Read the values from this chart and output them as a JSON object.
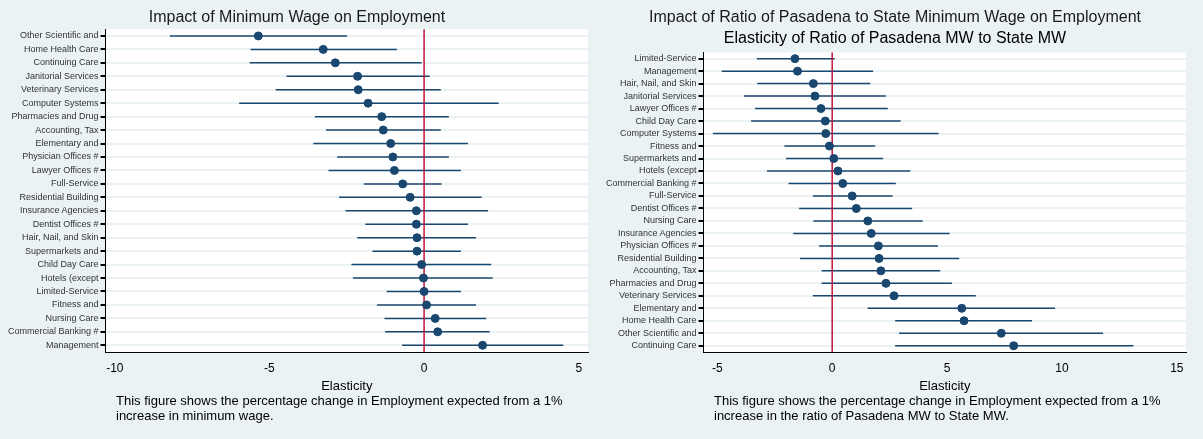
{
  "chart_data": [
    {
      "type": "scatter",
      "orientation": "horizontal",
      "title": "Impact of Minimum Wage on Employment",
      "xlabel": "Elasticity",
      "annotations": [
        "This figure shows the percentage change in Employment expected from a 1% increase in minimum wage."
      ],
      "marker": "circle",
      "grid": "y",
      "legend": false,
      "color": "#1a476f",
      "xlim": [
        -10.3,
        5.3
      ],
      "xticks": [
        -10,
        -5,
        0,
        5
      ],
      "ref_lines": [
        {
          "axis": "x",
          "value": 0,
          "color": "#c0143c"
        }
      ],
      "categories": [
        "Other Scientific and",
        "Home Health Care",
        "Continuing Care",
        "Janitorial Services",
        "Veterinary Services",
        "Computer Systems",
        "Pharmacies and Drug",
        "Accounting, Tax",
        "Elementary and",
        "Physician Offices #",
        "Lawyer Offices #",
        "Full-Service",
        "Residential Building",
        "Insurance Agencies",
        "Dentist Offices #",
        "Hair, Nail, and Skin",
        "Supermarkets and",
        "Child Day Care",
        "Hotels (except",
        "Limited-Service",
        "Fitness and",
        "Nursing Care",
        "Commercial Banking #",
        "Management"
      ],
      "values": [
        -5.36,
        -3.26,
        -2.87,
        -2.15,
        -2.13,
        -1.81,
        -1.37,
        -1.32,
        -1.08,
        -1.01,
        -0.96,
        -0.69,
        -0.45,
        -0.25,
        -0.25,
        -0.23,
        -0.23,
        -0.08,
        -0.02,
        0.0,
        0.08,
        0.36,
        0.44,
        1.89
      ],
      "errors": [
        [
          -8.22,
          -2.49
        ],
        [
          -5.61,
          -0.88
        ],
        [
          -5.64,
          -0.08
        ],
        [
          -4.45,
          0.18
        ],
        [
          -4.8,
          0.54
        ],
        [
          -5.98,
          2.41
        ],
        [
          -3.53,
          0.8
        ],
        [
          -3.17,
          0.54
        ],
        [
          -3.58,
          1.42
        ],
        [
          -2.81,
          0.8
        ],
        [
          -3.09,
          1.19
        ],
        [
          -1.95,
          0.57
        ],
        [
          -2.75,
          1.86
        ],
        [
          -2.54,
          2.07
        ],
        [
          -1.9,
          1.42
        ],
        [
          -2.16,
          1.68
        ],
        [
          -1.67,
          1.19
        ],
        [
          -2.35,
          2.17
        ],
        [
          -2.3,
          2.22
        ],
        [
          -1.21,
          1.19
        ],
        [
          -1.52,
          1.68
        ],
        [
          -1.28,
          2.01
        ],
        [
          -1.26,
          2.12
        ],
        [
          -0.71,
          4.5
        ]
      ]
    },
    {
      "type": "scatter",
      "orientation": "horizontal",
      "title": "Impact of Ratio of Pasadena to State Minimum Wage on Employment",
      "subtitle": "Elasticity of Ratio of Pasadena MW to State MW",
      "xlabel": "Elasticity",
      "annotations": [
        "This figure shows the percentage change in Employment expected from a 1% increase in the ratio of Pasadena MW to State MW."
      ],
      "marker": "circle",
      "grid": "y",
      "legend": false,
      "color": "#1a476f",
      "xlim": [
        -5.6,
        15.4
      ],
      "xticks": [
        -5,
        0,
        5,
        10,
        15
      ],
      "ref_lines": [
        {
          "axis": "x",
          "value": 0,
          "color": "#c0143c"
        }
      ],
      "categories": [
        "Limited-Service",
        "Management",
        "Hair, Nail, and Skin",
        "Janitorial Services",
        "Lawyer Offices #",
        "Child Day Care",
        "Computer Systems",
        "Fitness and",
        "Supermarkets and",
        "Hotels (except",
        "Commercial Banking #",
        "Full-Service",
        "Dentist Offices #",
        "Nursing Care",
        "Insurance Agencies",
        "Physician Offices #",
        "Residential Building",
        "Accounting, Tax",
        "Pharmacies and Drug",
        "Veterinary Services",
        "Elementary and",
        "Home Health Care",
        "Other Scientific and",
        "Continuing Care"
      ],
      "values": [
        -1.62,
        -1.51,
        -0.82,
        -0.75,
        -0.49,
        -0.3,
        -0.28,
        -0.12,
        0.07,
        0.25,
        0.46,
        0.87,
        1.05,
        1.55,
        1.7,
        2.01,
        2.04,
        2.12,
        2.34,
        2.69,
        5.64,
        5.74,
        7.36,
        7.9
      ],
      "errors": [
        [
          -3.28,
          0.11
        ],
        [
          -4.81,
          1.78
        ],
        [
          -3.26,
          1.66
        ],
        [
          -3.84,
          2.33
        ],
        [
          -3.36,
          2.42
        ],
        [
          -3.53,
          2.98
        ],
        [
          -5.19,
          4.63
        ],
        [
          -2.08,
          1.87
        ],
        [
          -2.01,
          2.22
        ],
        [
          -2.84,
          3.4
        ],
        [
          -1.9,
          2.77
        ],
        [
          -0.84,
          2.63
        ],
        [
          -1.44,
          3.48
        ],
        [
          -0.82,
          3.94
        ],
        [
          -1.7,
          5.11
        ],
        [
          -0.57,
          4.6
        ],
        [
          -1.4,
          5.53
        ],
        [
          -0.46,
          4.7
        ],
        [
          -0.46,
          5.21
        ],
        [
          -0.84,
          6.25
        ],
        [
          1.54,
          9.7
        ],
        [
          2.74,
          8.7
        ],
        [
          2.91,
          11.79
        ],
        [
          2.74,
          13.11
        ]
      ]
    }
  ]
}
